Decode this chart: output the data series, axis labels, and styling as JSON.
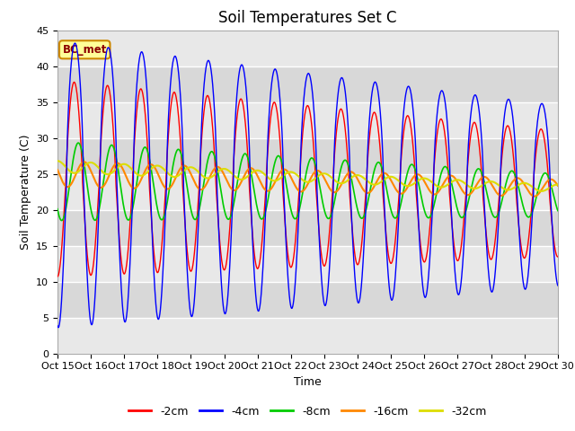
{
  "title": "Soil Temperatures Set C",
  "xlabel": "Time",
  "ylabel": "Soil Temperature (C)",
  "ylim": [
    0,
    45
  ],
  "xlim": [
    0,
    360
  ],
  "annotation": "BC_met",
  "x_tick_labels": [
    "Oct 15",
    "Oct 16",
    "Oct 17",
    "Oct 18",
    "Oct 19",
    "Oct 20",
    "Oct 21",
    "Oct 22",
    "Oct 23",
    "Oct 24",
    "Oct 25",
    "Oct 26",
    "Oct 27",
    "Oct 28",
    "Oct 29",
    "Oct 30"
  ],
  "legend_labels": [
    "-2cm",
    "-4cm",
    "-8cm",
    "-16cm",
    "-32cm"
  ],
  "colors": {
    "-2cm": "#ff0000",
    "-4cm": "#0000ff",
    "-8cm": "#00cc00",
    "-16cm": "#ff8800",
    "-32cm": "#dddd00"
  },
  "plot_bg_light": "#e8e8e8",
  "plot_bg_dark": "#d8d8d8",
  "grid_color": "#ffffff",
  "title_fontsize": 12,
  "axis_fontsize": 9,
  "tick_fontsize": 8
}
